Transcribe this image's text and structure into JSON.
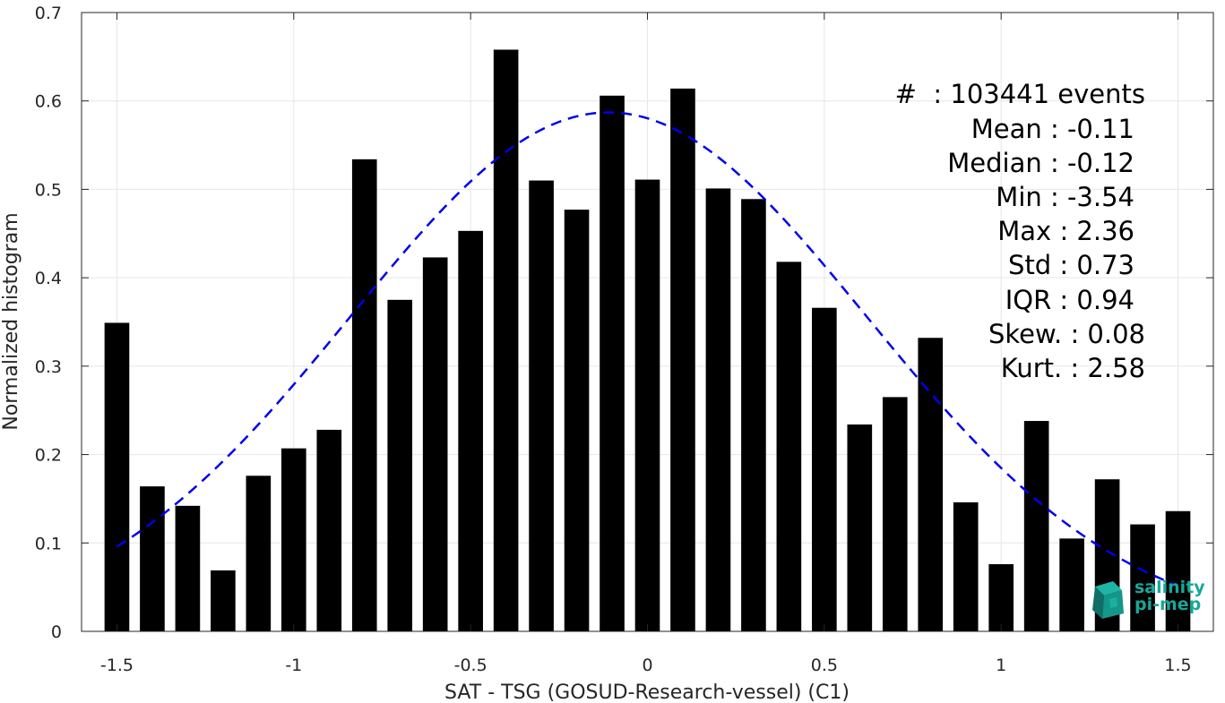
{
  "chart_data": {
    "type": "bar",
    "xlabel": "SAT - TSG (GOSUD-Research-vessel) (C1)",
    "ylabel": "Normalized histogram",
    "xlim": [
      -1.6,
      1.6
    ],
    "ylim": [
      0,
      0.7
    ],
    "grid": true,
    "x": [
      -1.5,
      -1.4,
      -1.3,
      -1.2,
      -1.1,
      -1.0,
      -0.9,
      -0.8,
      -0.7,
      -0.6,
      -0.5,
      -0.4,
      -0.3,
      -0.2,
      -0.1,
      0.0,
      0.1,
      0.2,
      0.3,
      0.4,
      0.5,
      0.6,
      0.7,
      0.8,
      0.9,
      1.0,
      1.1,
      1.2,
      1.3,
      1.4,
      1.5
    ],
    "values": [
      0.349,
      0.164,
      0.142,
      0.069,
      0.176,
      0.207,
      0.228,
      0.534,
      0.375,
      0.423,
      0.453,
      0.658,
      0.51,
      0.477,
      0.606,
      0.511,
      0.614,
      0.501,
      0.489,
      0.418,
      0.366,
      0.234,
      0.265,
      0.332,
      0.146,
      0.076,
      0.238,
      0.105,
      0.172,
      0.121,
      0.136
    ],
    "bar_color": "#000000",
    "fit_curve": {
      "style": "dashed",
      "color": "#0000ee",
      "mean": -0.11,
      "std": 0.73,
      "peak": 0.587,
      "x_range": [
        -1.5,
        1.5
      ]
    },
    "xticks": [
      "-1.5",
      "-1",
      "-0.5",
      "0",
      "0.5",
      "1",
      "1.5"
    ],
    "xtick_values": [
      -1.5,
      -1.0,
      -0.5,
      0.0,
      0.5,
      1.0,
      1.5
    ],
    "yticks": [
      "0",
      "0.1",
      "0.2",
      "0.3",
      "0.4",
      "0.5",
      "0.6",
      "0.7"
    ],
    "ytick_values": [
      0,
      0.1,
      0.2,
      0.3,
      0.4,
      0.5,
      0.6,
      0.7
    ]
  },
  "stats": {
    "events": "#  : 103441 events",
    "mean": "Mean : -0.11",
    "median": "Median : -0.12",
    "min": "Min : -3.54",
    "max": "Max : 2.36",
    "std": "Std : 0.73",
    "iqr": "IQR : 0.94",
    "skew": "Skew. : 0.08",
    "kurt": "Kurt. : 2.58"
  },
  "logo": {
    "line1": "salinity",
    "line2": "pi-mep",
    "color": "#17a89a"
  }
}
